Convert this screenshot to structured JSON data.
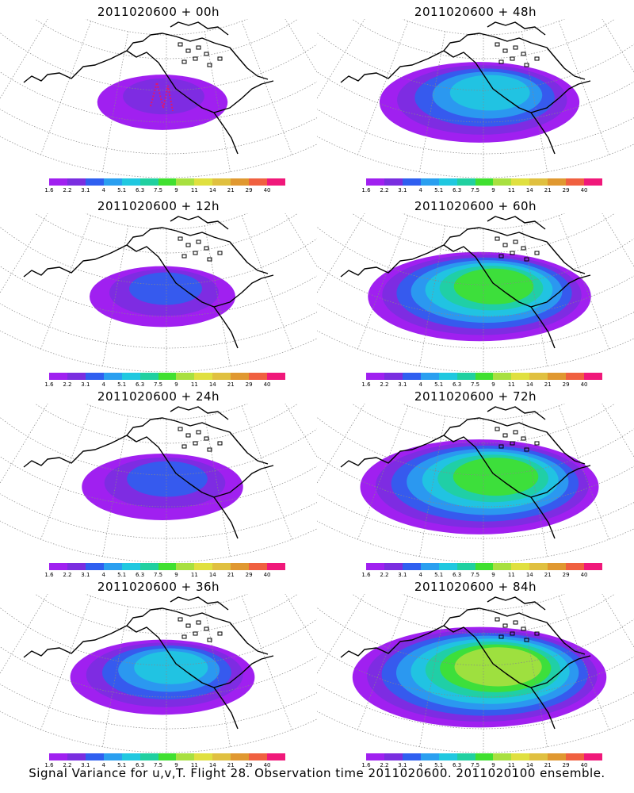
{
  "footer": "Signal Variance for u,v,T. Flight 28. Observation time 2011020600. 2011020100 ensemble.",
  "colorbar": {
    "labels": [
      "1.6",
      "2.2",
      "3.1",
      "4",
      "5.1",
      "6.3",
      "7.5",
      "9",
      "11",
      "14",
      "21",
      "29",
      "40"
    ],
    "colors": [
      "#a020f0",
      "#7a2ee0",
      "#2f5ff0",
      "#2a9ff0",
      "#20c8e0",
      "#20d0a0",
      "#40e030",
      "#a8e040",
      "#e0e040",
      "#e0c040",
      "#e09830",
      "#f06040",
      "#f0187a"
    ]
  },
  "panels": [
    {
      "id": "p00",
      "title": "2011020600 + 00h",
      "level": 0.1
    },
    {
      "id": "p48",
      "title": "2011020600 + 48h",
      "level": 0.55
    },
    {
      "id": "p12",
      "title": "2011020600 + 12h",
      "level": 0.2
    },
    {
      "id": "p60",
      "title": "2011020600 + 60h",
      "level": 0.7
    },
    {
      "id": "p24",
      "title": "2011020600 + 24h",
      "level": 0.3
    },
    {
      "id": "p72",
      "title": "2011020600 + 72h",
      "level": 0.8
    },
    {
      "id": "p36",
      "title": "2011020600 + 36h",
      "level": 0.45
    },
    {
      "id": "p84",
      "title": "2011020600 + 84h",
      "level": 0.9
    }
  ]
}
